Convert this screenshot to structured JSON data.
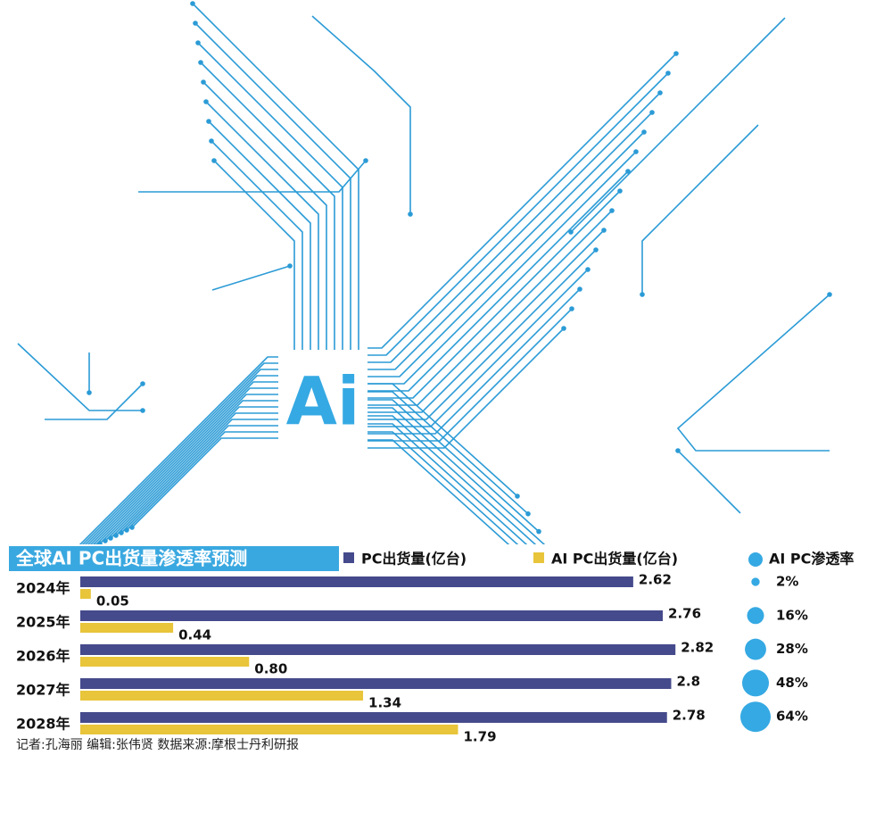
{
  "chart_data": {
    "type": "bar",
    "orientation": "horizontal",
    "title": "全球AI PC出货量渗透率预测",
    "annotation": "Ai",
    "categories": [
      "2024年",
      "2025年",
      "2026年",
      "2027年",
      "2028年"
    ],
    "series": [
      {
        "name": "PC出货量(亿台)",
        "color": "#454a8c",
        "values": [
          2.62,
          2.76,
          2.82,
          2.8,
          2.78
        ]
      },
      {
        "name": "AI PC出货量(亿台)",
        "color": "#e8c53a",
        "values": [
          0.05,
          0.44,
          0.8,
          1.34,
          1.79
        ],
        "value_labels": [
          "0.05",
          "0.44",
          "0.80",
          "1.34",
          "1.79"
        ]
      }
    ],
    "penetration": {
      "name": "AI PC渗透率",
      "color": "#35a9e3",
      "values": [
        2,
        16,
        28,
        48,
        64
      ],
      "value_labels": [
        "2%",
        "16%",
        "28%",
        "48%",
        "64%"
      ]
    },
    "footer": "记者:孔海丽   编辑:张伟贤   数据来源:摩根士丹利研报"
  }
}
